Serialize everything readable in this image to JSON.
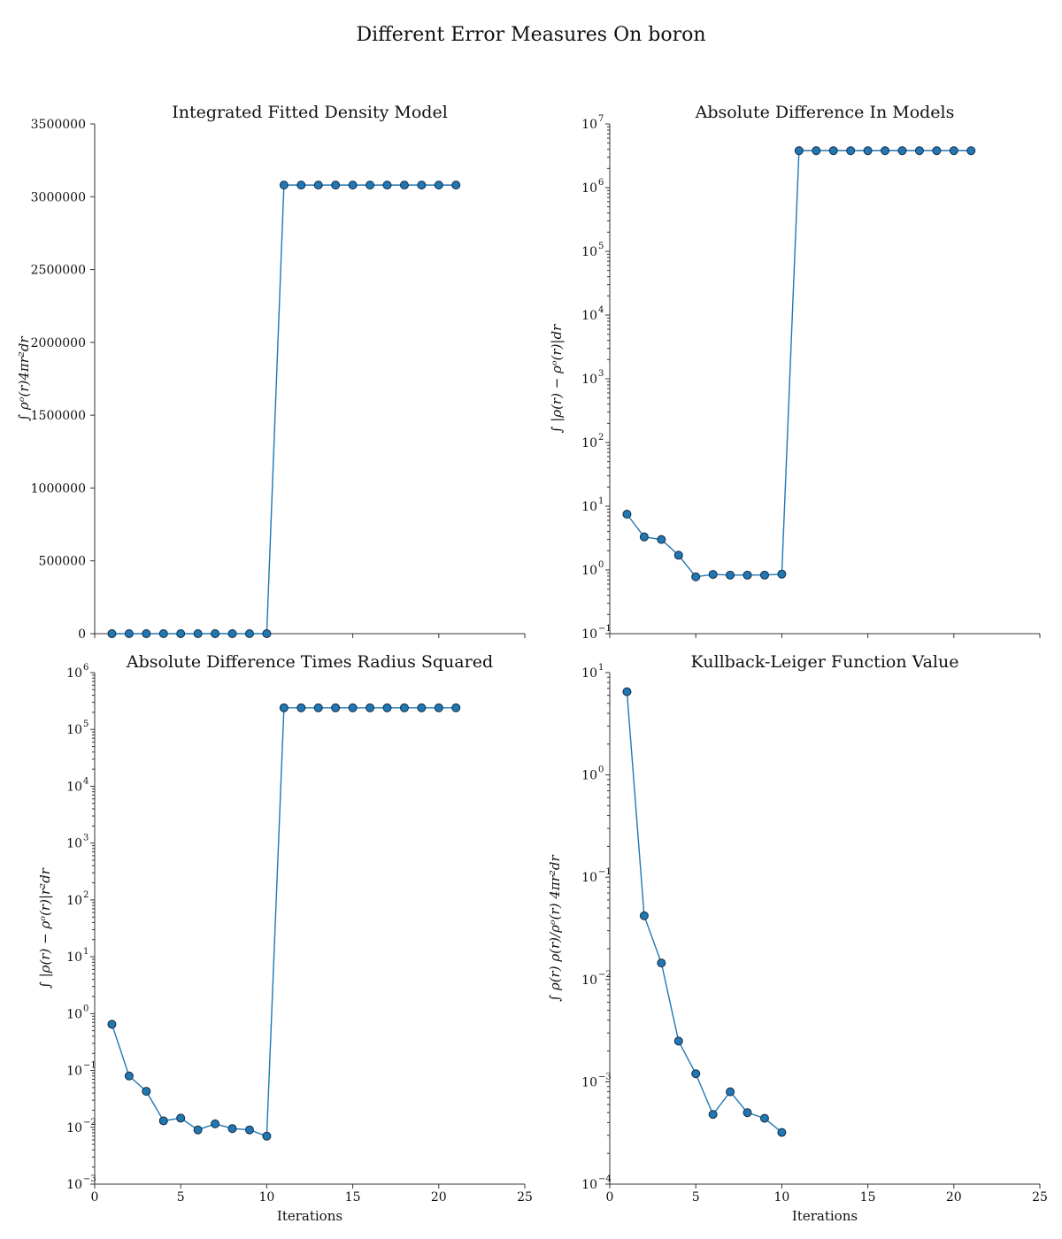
{
  "figure": {
    "title": "Different Error Measures On boron"
  },
  "style": {
    "series_color": "#1f77b4",
    "marker_edge": "#1a2a40",
    "axis_color": "#333333"
  },
  "chart_data": [
    {
      "type": "line",
      "title": "Integrated Fitted Density Model",
      "xlabel": "",
      "ylabel": "∫ ρᵒ(r)4πr²dr",
      "yscale": "linear",
      "xlim": [
        0,
        25
      ],
      "ylim": [
        0,
        3500000
      ],
      "xticks": [
        0,
        5,
        10,
        15,
        20,
        25
      ],
      "xtick_labels": [
        "",
        "",
        "",
        "",
        "",
        ""
      ],
      "yticks": [
        0,
        500000,
        1000000,
        1500000,
        2000000,
        2500000,
        3000000,
        3500000
      ],
      "ytick_labels": [
        "0",
        "500000",
        "1000000",
        "1500000",
        "2000000",
        "2500000",
        "3000000",
        "3500000"
      ],
      "grid": false,
      "series": [
        {
          "x": [
            1,
            2,
            3,
            4,
            5,
            6,
            7,
            8,
            9,
            10,
            11,
            12,
            13,
            14,
            15,
            16,
            17,
            18,
            19,
            20,
            21
          ],
          "y": [
            5,
            5,
            5,
            5,
            5,
            5,
            5,
            5,
            5,
            5,
            3080000,
            3080000,
            3080000,
            3080000,
            3080000,
            3080000,
            3080000,
            3080000,
            3080000,
            3080000,
            3080000
          ]
        }
      ]
    },
    {
      "type": "line",
      "title": "Absolute Difference In Models",
      "xlabel": "",
      "ylabel": "∫ |ρ(r) − ρᵒ(r)|dr",
      "yscale": "log",
      "xlim": [
        0,
        25
      ],
      "ylim": [
        0.1,
        10000000
      ],
      "xticks": [
        0,
        5,
        10,
        15,
        20,
        25
      ],
      "xtick_labels": [
        "",
        "",
        "",
        "",
        "",
        ""
      ],
      "ytick_exponents": [
        -1,
        0,
        1,
        2,
        3,
        4,
        5,
        6,
        7
      ],
      "ytick_labels": [
        "10",
        "10",
        "10",
        "10",
        "10",
        "10",
        "10",
        "10",
        "10"
      ],
      "ytick_label_sups": [
        "−1",
        "0",
        "1",
        "2",
        "3",
        "4",
        "5",
        "6",
        "7"
      ],
      "grid": false,
      "series": [
        {
          "x": [
            1,
            2,
            3,
            4,
            5,
            6,
            7,
            8,
            9,
            10,
            11,
            12,
            13,
            14,
            15,
            16,
            17,
            18,
            19,
            20,
            21
          ],
          "y": [
            7.5,
            3.3,
            3.0,
            1.7,
            0.78,
            0.85,
            0.83,
            0.83,
            0.83,
            0.86,
            3800000,
            3800000,
            3800000,
            3800000,
            3800000,
            3800000,
            3800000,
            3800000,
            3800000,
            3800000,
            3800000
          ]
        }
      ]
    },
    {
      "type": "line",
      "title": "Absolute Difference Times Radius Squared",
      "xlabel": "Iterations",
      "ylabel": "∫ |ρ(r) − ρᵒ(r)|r²dr",
      "yscale": "log",
      "xlim": [
        0,
        25
      ],
      "ylim": [
        0.001,
        1000000
      ],
      "xticks": [
        0,
        5,
        10,
        15,
        20,
        25
      ],
      "xtick_labels": [
        "0",
        "5",
        "10",
        "15",
        "20",
        "25"
      ],
      "ytick_exponents": [
        -3,
        -2,
        -1,
        0,
        1,
        2,
        3,
        4,
        5,
        6
      ],
      "ytick_labels": [
        "10",
        "10",
        "10",
        "10",
        "10",
        "10",
        "10",
        "10",
        "10",
        "10"
      ],
      "ytick_label_sups": [
        "−3",
        "−2",
        "−1",
        "0",
        "1",
        "2",
        "3",
        "4",
        "5",
        "6"
      ],
      "grid": false,
      "series": [
        {
          "x": [
            1,
            2,
            3,
            4,
            5,
            6,
            7,
            8,
            9,
            10,
            11,
            12,
            13,
            14,
            15,
            16,
            17,
            18,
            19,
            20,
            21
          ],
          "y": [
            0.65,
            0.08,
            0.043,
            0.013,
            0.0145,
            0.009,
            0.0115,
            0.0095,
            0.009,
            0.007,
            240000,
            240000,
            240000,
            240000,
            240000,
            240000,
            240000,
            240000,
            240000,
            240000,
            240000
          ]
        }
      ]
    },
    {
      "type": "line",
      "title": "Kullback-Leiger Function Value",
      "xlabel": "Iterations",
      "ylabel": "∫ ρ(r) ρ(r)/ρᵒ(r) 4πr²dr",
      "yscale": "log",
      "xlim": [
        0,
        25
      ],
      "ylim": [
        0.0001,
        10
      ],
      "xticks": [
        0,
        5,
        10,
        15,
        20,
        25
      ],
      "xtick_labels": [
        "0",
        "5",
        "10",
        "15",
        "20",
        "25"
      ],
      "ytick_exponents": [
        -4,
        -3,
        -2,
        -1,
        0,
        1
      ],
      "ytick_labels": [
        "10",
        "10",
        "10",
        "10",
        "10",
        "10"
      ],
      "ytick_label_sups": [
        "−4",
        "−3",
        "−2",
        "−1",
        "0",
        "1"
      ],
      "grid": false,
      "series": [
        {
          "x": [
            1,
            2,
            3,
            4,
            5,
            6,
            7,
            8,
            9,
            10
          ],
          "y": [
            6.5,
            0.042,
            0.0145,
            0.0025,
            0.0012,
            0.00048,
            0.0008,
            0.0005,
            0.00044,
            0.00032
          ]
        }
      ]
    }
  ]
}
